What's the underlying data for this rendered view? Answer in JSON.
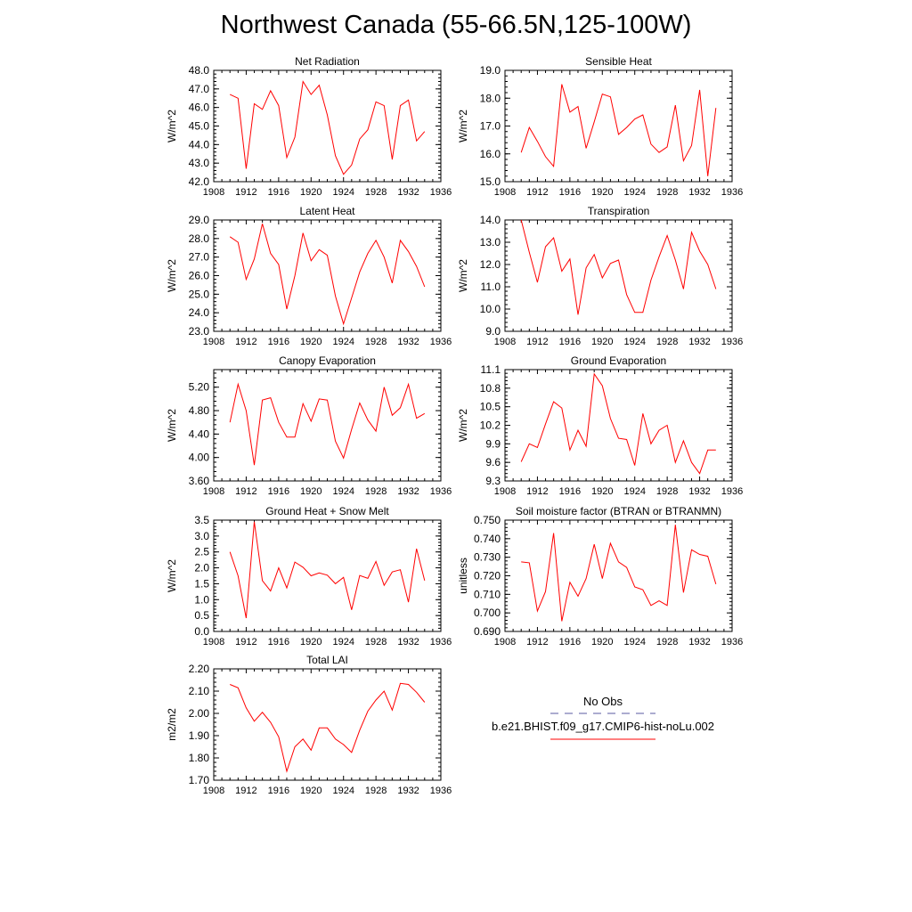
{
  "title": "Northwest Canada (55-66.5N,125-100W)",
  "colors": {
    "series": "#ff0000",
    "obs": "#5a5aa0",
    "axis": "#000000"
  },
  "chart_data": [
    {
      "type": "line",
      "title": "Net Radiation",
      "ylabel": "W/m^2",
      "xlim": [
        1908,
        1936
      ],
      "ylim": [
        42.0,
        48.0
      ],
      "xticks": [
        1908,
        1912,
        1916,
        1920,
        1924,
        1928,
        1932,
        1936
      ],
      "yticks": [
        42.0,
        43.0,
        44.0,
        45.0,
        46.0,
        47.0,
        48.0
      ],
      "ytick_decimals": 1,
      "x": [
        1910,
        1911,
        1912,
        1913,
        1914,
        1915,
        1916,
        1917,
        1918,
        1919,
        1920,
        1921,
        1922,
        1923,
        1924,
        1925,
        1926,
        1927,
        1928,
        1929,
        1930,
        1931,
        1932,
        1933,
        1934
      ],
      "values": [
        46.7,
        46.5,
        42.7,
        46.2,
        45.9,
        46.9,
        46.1,
        43.3,
        44.4,
        47.4,
        46.7,
        47.2,
        45.6,
        43.4,
        42.4,
        42.9,
        44.3,
        44.8,
        46.3,
        46.1,
        43.2,
        46.1,
        46.4,
        44.2,
        44.7
      ]
    },
    {
      "type": "line",
      "title": "Sensible Heat",
      "ylabel": "W/m^2",
      "xlim": [
        1908,
        1936
      ],
      "ylim": [
        15.0,
        19.0
      ],
      "xticks": [
        1908,
        1912,
        1916,
        1920,
        1924,
        1928,
        1932,
        1936
      ],
      "yticks": [
        15.0,
        16.0,
        17.0,
        18.0,
        19.0
      ],
      "ytick_decimals": 1,
      "x": [
        1910,
        1911,
        1912,
        1913,
        1914,
        1915,
        1916,
        1917,
        1918,
        1919,
        1920,
        1921,
        1922,
        1923,
        1924,
        1925,
        1926,
        1927,
        1928,
        1929,
        1930,
        1931,
        1932,
        1933,
        1934
      ],
      "values": [
        16.05,
        16.95,
        16.45,
        15.9,
        15.55,
        18.5,
        17.5,
        17.7,
        16.2,
        17.15,
        18.15,
        18.05,
        16.7,
        16.95,
        17.25,
        17.4,
        16.35,
        16.05,
        16.25,
        17.75,
        15.75,
        16.3,
        18.3,
        15.2,
        17.65
      ]
    },
    {
      "type": "line",
      "title": "Latent Heat",
      "ylabel": "W/m^2",
      "xlim": [
        1908,
        1936
      ],
      "ylim": [
        23.0,
        29.0
      ],
      "xticks": [
        1908,
        1912,
        1916,
        1920,
        1924,
        1928,
        1932,
        1936
      ],
      "yticks": [
        23.0,
        24.0,
        25.0,
        26.0,
        27.0,
        28.0,
        29.0
      ],
      "ytick_decimals": 1,
      "x": [
        1910,
        1911,
        1912,
        1913,
        1914,
        1915,
        1916,
        1917,
        1918,
        1919,
        1920,
        1921,
        1922,
        1923,
        1924,
        1925,
        1926,
        1927,
        1928,
        1929,
        1930,
        1931,
        1932,
        1933,
        1934
      ],
      "values": [
        28.1,
        27.8,
        25.8,
        26.9,
        28.8,
        27.2,
        26.6,
        24.2,
        26.0,
        28.3,
        26.8,
        27.4,
        27.1,
        24.9,
        23.4,
        24.8,
        26.2,
        27.2,
        27.9,
        27.0,
        25.6,
        27.9,
        27.3,
        26.5,
        25.4
      ]
    },
    {
      "type": "line",
      "title": "Transpiration",
      "ylabel": "W/m^2",
      "xlim": [
        1908,
        1936
      ],
      "ylim": [
        9.0,
        14.0
      ],
      "xticks": [
        1908,
        1912,
        1916,
        1920,
        1924,
        1928,
        1932,
        1936
      ],
      "yticks": [
        9.0,
        10.0,
        11.0,
        12.0,
        13.0,
        14.0
      ],
      "ytick_decimals": 1,
      "x": [
        1910,
        1911,
        1912,
        1913,
        1914,
        1915,
        1916,
        1917,
        1918,
        1919,
        1920,
        1921,
        1922,
        1923,
        1924,
        1925,
        1926,
        1927,
        1928,
        1929,
        1930,
        1931,
        1932,
        1933,
        1934
      ],
      "values": [
        14.0,
        12.55,
        11.2,
        12.8,
        13.2,
        11.7,
        12.25,
        9.75,
        11.85,
        12.45,
        11.4,
        12.05,
        12.2,
        10.65,
        9.85,
        9.85,
        11.3,
        12.35,
        13.3,
        12.2,
        10.9,
        13.45,
        12.6,
        12.0,
        10.9
      ]
    },
    {
      "type": "line",
      "title": "Canopy Evaporation",
      "ylabel": "W/m^2",
      "xlim": [
        1908,
        1936
      ],
      "ylim": [
        3.6,
        5.5
      ],
      "xticks": [
        1908,
        1912,
        1916,
        1920,
        1924,
        1928,
        1932,
        1936
      ],
      "yticks": [
        3.6,
        4.0,
        4.4,
        4.8,
        5.2
      ],
      "ytick_decimals": 2,
      "x": [
        1910,
        1911,
        1912,
        1913,
        1914,
        1915,
        1916,
        1917,
        1918,
        1919,
        1920,
        1921,
        1922,
        1923,
        1924,
        1925,
        1926,
        1927,
        1928,
        1929,
        1930,
        1931,
        1932,
        1933,
        1934
      ],
      "values": [
        4.6,
        5.25,
        4.8,
        3.87,
        4.98,
        5.02,
        4.6,
        4.35,
        4.35,
        4.92,
        4.62,
        5.0,
        4.98,
        4.28,
        3.99,
        4.48,
        4.93,
        4.64,
        4.45,
        5.2,
        4.72,
        4.85,
        5.25,
        4.67,
        4.75
      ]
    },
    {
      "type": "line",
      "title": "Ground Evaporation",
      "ylabel": "W/m^2",
      "xlim": [
        1908,
        1936
      ],
      "ylim": [
        9.3,
        11.1
      ],
      "xticks": [
        1908,
        1912,
        1916,
        1920,
        1924,
        1928,
        1932,
        1936
      ],
      "yticks": [
        9.3,
        9.6,
        9.9,
        10.2,
        10.5,
        10.8,
        11.1
      ],
      "ytick_decimals": 1,
      "x": [
        1910,
        1911,
        1912,
        1913,
        1914,
        1915,
        1916,
        1917,
        1918,
        1919,
        1920,
        1921,
        1922,
        1923,
        1924,
        1925,
        1926,
        1927,
        1928,
        1929,
        1930,
        1931,
        1932,
        1933,
        1934
      ],
      "values": [
        9.61,
        9.9,
        9.84,
        10.22,
        10.58,
        10.48,
        9.8,
        10.12,
        9.86,
        11.03,
        10.84,
        10.31,
        9.99,
        9.97,
        9.55,
        10.39,
        9.9,
        10.12,
        10.2,
        9.6,
        9.95,
        9.6,
        9.42,
        9.8,
        9.8
      ]
    },
    {
      "type": "line",
      "title": "Ground Heat + Snow Melt",
      "ylabel": "W/m^2",
      "xlim": [
        1908,
        1936
      ],
      "ylim": [
        0.0,
        3.5
      ],
      "xticks": [
        1908,
        1912,
        1916,
        1920,
        1924,
        1928,
        1932,
        1936
      ],
      "yticks": [
        0.0,
        0.5,
        1.0,
        1.5,
        2.0,
        2.5,
        3.0,
        3.5
      ],
      "ytick_decimals": 1,
      "x": [
        1910,
        1911,
        1912,
        1913,
        1914,
        1915,
        1916,
        1917,
        1918,
        1919,
        1920,
        1921,
        1922,
        1923,
        1924,
        1925,
        1926,
        1927,
        1928,
        1929,
        1930,
        1931,
        1932,
        1933,
        1934
      ],
      "values": [
        2.5,
        1.75,
        0.42,
        3.45,
        1.6,
        1.27,
        2.0,
        1.37,
        2.18,
        2.02,
        1.75,
        1.84,
        1.77,
        1.5,
        1.7,
        0.68,
        1.76,
        1.67,
        2.2,
        1.45,
        1.87,
        1.94,
        0.92,
        2.6,
        1.6
      ]
    },
    {
      "type": "line",
      "title": "Soil moisture factor (BTRAN or BTRANMN)",
      "ylabel": "unitless",
      "xlim": [
        1908,
        1936
      ],
      "ylim": [
        0.69,
        0.75
      ],
      "xticks": [
        1908,
        1912,
        1916,
        1920,
        1924,
        1928,
        1932,
        1936
      ],
      "yticks": [
        0.69,
        0.7,
        0.71,
        0.72,
        0.73,
        0.74,
        0.75
      ],
      "ytick_decimals": 3,
      "x": [
        1910,
        1911,
        1912,
        1913,
        1914,
        1915,
        1916,
        1917,
        1918,
        1919,
        1920,
        1921,
        1922,
        1923,
        1924,
        1925,
        1926,
        1927,
        1928,
        1929,
        1930,
        1931,
        1932,
        1933,
        1934
      ],
      "values": [
        0.7275,
        0.727,
        0.701,
        0.7115,
        0.743,
        0.6955,
        0.7165,
        0.709,
        0.7185,
        0.737,
        0.7185,
        0.7375,
        0.7275,
        0.7245,
        0.714,
        0.7125,
        0.704,
        0.7065,
        0.704,
        0.7475,
        0.711,
        0.734,
        0.7315,
        0.7305,
        0.7155
      ]
    },
    {
      "type": "line",
      "title": "Total LAI",
      "ylabel": "m2/m2",
      "xlim": [
        1908,
        1936
      ],
      "ylim": [
        1.7,
        2.2
      ],
      "xticks": [
        1908,
        1912,
        1916,
        1920,
        1924,
        1928,
        1932,
        1936
      ],
      "yticks": [
        1.7,
        1.8,
        1.9,
        2.0,
        2.1,
        2.2
      ],
      "ytick_decimals": 2,
      "x": [
        1910,
        1911,
        1912,
        1913,
        1914,
        1915,
        1916,
        1917,
        1918,
        1919,
        1920,
        1921,
        1922,
        1923,
        1924,
        1925,
        1926,
        1927,
        1928,
        1929,
        1930,
        1931,
        1932,
        1933,
        1934
      ],
      "values": [
        2.13,
        2.115,
        2.025,
        1.965,
        2.005,
        1.96,
        1.895,
        1.74,
        1.85,
        1.885,
        1.835,
        1.935,
        1.935,
        1.885,
        1.86,
        1.825,
        1.925,
        2.01,
        2.06,
        2.1,
        2.015,
        2.135,
        2.13,
        2.095,
        2.05
      ]
    }
  ],
  "legend": {
    "obs_label": "No Obs",
    "model_label": "b.e21.BHIST.f09_g17.CMIP6-hist-noLu.002"
  }
}
